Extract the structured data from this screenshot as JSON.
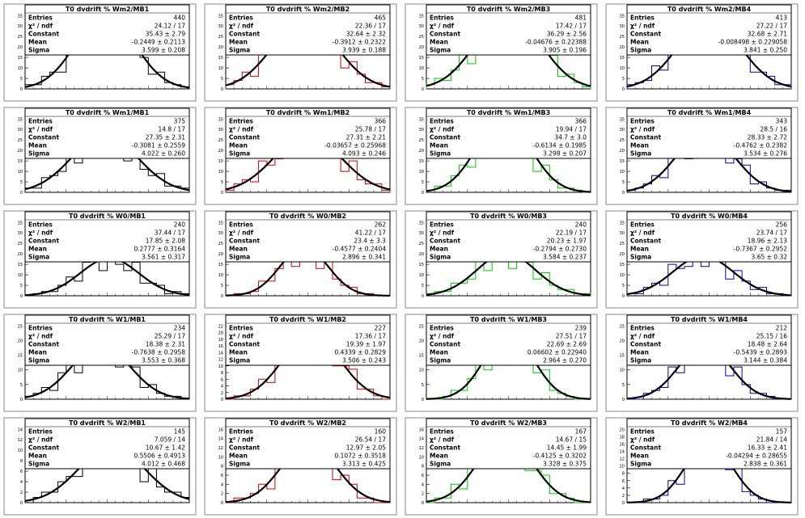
{
  "stat_labels": [
    "Entries",
    "χ² / ndf",
    "Constant",
    "Mean",
    "Sigma"
  ],
  "colors": {
    "MB1": "#000000",
    "MB2": "#cc0000",
    "MB3": "#00cc00",
    "MB4": "#0000aa",
    "fit": "#000000",
    "frame": "#000000",
    "pad": "#ffffff",
    "background": "#ffffff"
  },
  "chart_data": [
    {
      "type": "histogram",
      "title": "T0 dvdrift % Wm2/MB1",
      "station": "MB1",
      "ytick_labels": [
        "0",
        "5",
        "10",
        "15",
        "20",
        "25",
        "30",
        "35"
      ],
      "stats": {
        "entries": "440",
        "chi2_ndf": "24.12 / 17",
        "constant": "35.43 ± 2.79",
        "mean": "-0.2449 ± 0.2113",
        "sigma": "3.599 ± 0.208"
      }
    },
    {
      "type": "histogram",
      "title": "T0 dvdrift % Wm2/MB2",
      "station": "MB2",
      "ytick_labels": [
        "0",
        "5",
        "10",
        "15",
        "20",
        "25",
        "30",
        "35"
      ],
      "stats": {
        "entries": "465",
        "chi2_ndf": "22.36 / 17",
        "constant": "32.64 ± 2.32",
        "mean": "-0.3912 ± 0.2322",
        "sigma": "3.939 ± 0.188"
      }
    },
    {
      "type": "histogram",
      "title": "T0 dvdrift % Wm2/MB3",
      "station": "MB3",
      "ytick_labels": [
        "0",
        "5",
        "10",
        "15",
        "20",
        "25",
        "30",
        "35"
      ],
      "stats": {
        "entries": "481",
        "chi2_ndf": "17.42 / 17",
        "constant": "36.29 ± 2.56",
        "mean": "-0.04676 ± 0.22388",
        "sigma": "3.905 ± 0.196"
      }
    },
    {
      "type": "histogram",
      "title": "T0 dvdrift % Wm2/MB4",
      "station": "MB4",
      "ytick_labels": [
        "0",
        "5",
        "10",
        "15",
        "20",
        "25",
        "30",
        "35"
      ],
      "stats": {
        "entries": "413",
        "chi2_ndf": "27.22 / 17",
        "constant": "32.68 ± 2.71",
        "mean": "-0.008498 ± 0.229058",
        "sigma": "3.841 ± 0.250"
      }
    },
    {
      "type": "histogram",
      "title": "T0 dvdrift % Wm1/MB1",
      "station": "MB1",
      "ytick_labels": [
        "0",
        "5",
        "10",
        "15",
        "20",
        "25",
        "30",
        "35"
      ],
      "stats": {
        "entries": "375",
        "chi2_ndf": "14.8 / 17",
        "constant": "27.35 ± 2.31",
        "mean": "-0.3081 ± 0.2559",
        "sigma": "4.022 ± 0.260"
      }
    },
    {
      "type": "histogram",
      "title": "T0 dvdrift % Wm1/MB2",
      "station": "MB2",
      "ytick_labels": [
        "0",
        "5",
        "10",
        "15",
        "20",
        "25",
        "30",
        "35"
      ],
      "stats": {
        "entries": "366",
        "chi2_ndf": "25.78 / 17",
        "constant": "27.31 ± 2.21",
        "mean": "-0.03657 ± 0.25968",
        "sigma": "4.093 ± 0.246"
      }
    },
    {
      "type": "histogram",
      "title": "T0 dvdrift % Wm1/MB3",
      "station": "MB3",
      "ytick_labels": [
        "0",
        "5",
        "10",
        "15",
        "20",
        "25",
        "30",
        "35"
      ],
      "stats": {
        "entries": "366",
        "chi2_ndf": "19.94 / 17",
        "constant": "34.7 ± 3.0",
        "mean": "-0.6134 ± 0.1985",
        "sigma": "3.298 ± 0.207"
      }
    },
    {
      "type": "histogram",
      "title": "T0 dvdrift % Wm1/MB4",
      "station": "MB4",
      "ytick_labels": [
        "0",
        "5",
        "10",
        "15",
        "20",
        "25",
        "30",
        "35"
      ],
      "stats": {
        "entries": "343",
        "chi2_ndf": "28.5 / 16",
        "constant": "28.33 ± 2.72",
        "mean": "-0.4762 ± 0.2382",
        "sigma": "3.534 ± 0.276"
      }
    },
    {
      "type": "histogram",
      "title": "T0 dvdrift % W0/MB1",
      "station": "MB1",
      "ytick_labels": [
        "0",
        "5",
        "10",
        "15",
        "20",
        "25",
        "30",
        "35"
      ],
      "stats": {
        "entries": "240",
        "chi2_ndf": "37.44 / 17",
        "constant": "17.85 ± 2.08",
        "mean": "0.2777 ± 0.3164",
        "sigma": "3.561 ± 0.317"
      }
    },
    {
      "type": "histogram",
      "title": "T0 dvdrift % W0/MB2",
      "station": "MB2",
      "ytick_labels": [
        "0",
        "5",
        "10",
        "15",
        "20",
        "25",
        "30",
        "35"
      ],
      "stats": {
        "entries": "262",
        "chi2_ndf": "41.22 / 17",
        "constant": "23.4 ± 3.3",
        "mean": "-0.4577 ± 0.2404",
        "sigma": "2.896 ± 0.341"
      }
    },
    {
      "type": "histogram",
      "title": "T0 dvdrift % W0/MB3",
      "station": "MB3",
      "ytick_labels": [
        "0",
        "5",
        "10",
        "15",
        "20",
        "25",
        "30",
        "35"
      ],
      "stats": {
        "entries": "240",
        "chi2_ndf": "22.19 / 17",
        "constant": "20.23 ± 1.97",
        "mean": "-0.2794 ± 0.2730",
        "sigma": "3.584 ± 0.237"
      }
    },
    {
      "type": "histogram",
      "title": "T0 dvdrift % W0/MB4",
      "station": "MB4",
      "ytick_labels": [
        "0",
        "5",
        "10",
        "15",
        "20",
        "25",
        "30",
        "35"
      ],
      "stats": {
        "entries": "256",
        "chi2_ndf": "23.74 / 17",
        "constant": "18.96 ± 2.13",
        "mean": "-0.7367 ± 0.2952",
        "sigma": "3.65 ± 0.32"
      }
    },
    {
      "type": "histogram",
      "title": "T0 dvdrift % W1/MB1",
      "station": "MB1",
      "ytick_labels": [
        "0",
        "5",
        "10",
        "15",
        "20",
        "25"
      ],
      "stats": {
        "entries": "234",
        "chi2_ndf": "25.29 / 17",
        "constant": "18.38 ± 2.31",
        "mean": "-0.7638 ± 0.2958",
        "sigma": "3.553 ± 0.368"
      }
    },
    {
      "type": "histogram",
      "title": "T0 dvdrift % W1/MB2",
      "station": "MB2",
      "ytick_labels": [
        "0",
        "2",
        "4",
        "6",
        "8",
        "10",
        "12",
        "14",
        "16",
        "18",
        "20",
        "22"
      ],
      "stats": {
        "entries": "227",
        "chi2_ndf": "17.36 / 17",
        "constant": "19.39 ± 1.97",
        "mean": "0.4339 ± 0.2829",
        "sigma": "3.506 ± 0.243"
      }
    },
    {
      "type": "histogram",
      "title": "T0 dvdrift % W1/MB3",
      "station": "MB3",
      "ytick_labels": [
        "0",
        "5",
        "10",
        "15",
        "20",
        "25"
      ],
      "stats": {
        "entries": "239",
        "chi2_ndf": "27.51 / 17",
        "constant": "22.69 ± 2.69",
        "mean": "0.06602 ± 0.22940",
        "sigma": "2.964 ± 0.270"
      }
    },
    {
      "type": "histogram",
      "title": "T0 dvdrift % W1/MB4",
      "station": "MB4",
      "ytick_labels": [
        "0",
        "5",
        "10",
        "15",
        "20",
        "25"
      ],
      "stats": {
        "entries": "212",
        "chi2_ndf": "25.15 / 16",
        "constant": "18.48 ± 2.64",
        "mean": "-0.5439 ± 0.2893",
        "sigma": "3.144 ± 0.384"
      }
    },
    {
      "type": "histogram",
      "title": "T0 dvdrift % W2/MB1",
      "station": "MB1",
      "ytick_labels": [
        "0",
        "2",
        "4",
        "6",
        "8",
        "10",
        "12",
        "14"
      ],
      "stats": {
        "entries": "145",
        "chi2_ndf": "7.059 / 14",
        "constant": "10.67 ± 1.42",
        "mean": "0.5506 ± 0.4913",
        "sigma": "4.012 ± 0.468"
      }
    },
    {
      "type": "histogram",
      "title": "T0 dvdrift % W2/MB2",
      "station": "MB2",
      "ytick_labels": [
        "0",
        "2",
        "4",
        "6",
        "8",
        "10",
        "12",
        "14",
        "16"
      ],
      "stats": {
        "entries": "160",
        "chi2_ndf": "26.54 / 17",
        "constant": "12.97 ± 2.05",
        "mean": "0.1072 ± 0.3518",
        "sigma": "3.313 ± 0.425"
      }
    },
    {
      "type": "histogram",
      "title": "T0 dvdrift % W2/MB3",
      "station": "MB3",
      "ytick_labels": [
        "0",
        "2",
        "4",
        "6",
        "8",
        "10",
        "12",
        "14",
        "16"
      ],
      "stats": {
        "entries": "167",
        "chi2_ndf": "14.67 / 15",
        "constant": "14.45 ± 1.99",
        "mean": "-0.4125 ± 0.3202",
        "sigma": "3.328 ± 0.375"
      }
    },
    {
      "type": "histogram",
      "title": "T0 dvdrift % W2/MB4",
      "station": "MB4",
      "ytick_labels": [
        "0",
        "2",
        "4",
        "6",
        "8",
        "10",
        "12",
        "14",
        "16",
        "18",
        "20"
      ],
      "stats": {
        "entries": "157",
        "chi2_ndf": "21.84 / 14",
        "constant": "16.33 ± 2.41",
        "mean": "-0.04294 ± 0.28655",
        "sigma": "2.838 ± 0.361"
      }
    }
  ]
}
